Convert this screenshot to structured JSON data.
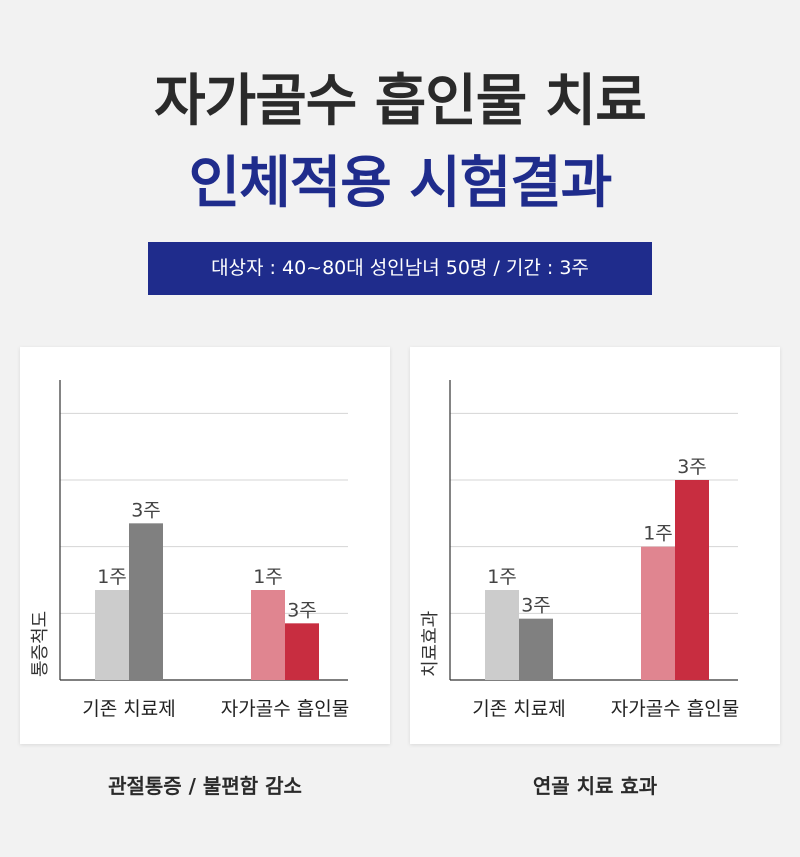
{
  "header": {
    "title_line1": "자가골수 흡인물 치료",
    "title_line2": "인체적용 시험결과",
    "subtitle": "대상자 : 40~80대 성인남녀 50명 / 기간 : 3주"
  },
  "colors": {
    "title_dark": "#2a2a2a",
    "brand_navy": "#1f2c8c",
    "existing_1w": "#cccccc",
    "existing_3w": "#808080",
    "aspirate_1w": "#e08590",
    "aspirate_3w": "#c82d40"
  },
  "chart_data": [
    {
      "type": "bar",
      "ylabel": "통증척도",
      "xlabel": "",
      "ylim": [
        0,
        4.5
      ],
      "grid": true,
      "caption": "관절통증 / 불편함 감소",
      "categories": [
        "기존 치료제",
        "자가골수 흡인물"
      ],
      "bars": [
        [
          {
            "label": "1주",
            "value": 1.35
          },
          {
            "label": "3주",
            "value": 2.35
          }
        ],
        [
          {
            "label": "1주",
            "value": 1.35
          },
          {
            "label": "3주",
            "value": 0.85
          }
        ]
      ]
    },
    {
      "type": "bar",
      "ylabel": "치료효과",
      "xlabel": "",
      "ylim": [
        0,
        4.5
      ],
      "grid": true,
      "caption": "연골 치료 효과",
      "categories": [
        "기존 치료제",
        "자가골수 흡인물"
      ],
      "bars": [
        [
          {
            "label": "1주",
            "value": 1.35
          },
          {
            "label": "3주",
            "value": 0.92
          }
        ],
        [
          {
            "label": "1주",
            "value": 2.0
          },
          {
            "label": "3주",
            "value": 3.0
          }
        ]
      ]
    }
  ]
}
